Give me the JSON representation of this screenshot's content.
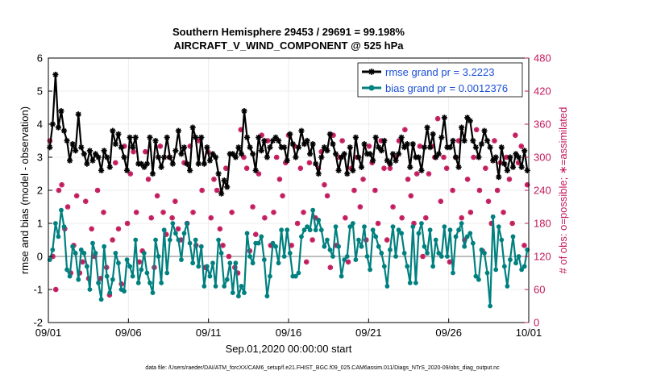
{
  "chart_data": {
    "type": "line",
    "title": "Southern Hemisphere 29453 / 29691 = 99.198%",
    "subtitle": "AIRCRAFT_V_WIND_COMPONENT @ 525 hPa",
    "xlabel": "Sep.01,2020 00:00:00 start",
    "ylabel": "rmse and bias (model - observation)",
    "ylabel_right": "# of obs: o=possible; ∗=assimilated",
    "footnote": "data file: /Users/raeder/DAI/ATM_forcXX/CAM6_setup/f.e21.FHIST_BGC.f09_025.CAM6assim.011/Diags_NTrS_2020-09/obs_diag_output.nc",
    "x_ticks": [
      "09/01",
      "09/06",
      "09/11",
      "09/16",
      "09/21",
      "09/26",
      "10/01"
    ],
    "y_ticks": [
      "-2",
      "-1",
      "0",
      "1",
      "2",
      "3",
      "4",
      "5",
      "6"
    ],
    "y_right_ticks": [
      "0",
      "60",
      "120",
      "180",
      "240",
      "300",
      "360",
      "420",
      "480"
    ],
    "xlim": [
      0,
      30
    ],
    "ylim": [
      -2,
      6
    ],
    "ylim_right": [
      0,
      480
    ],
    "colors": {
      "rmse": "#000000",
      "bias": "#00807f",
      "obs": "#c2185b",
      "zero_line": "#bdbdbd",
      "legend_text": "#1a4fd6"
    },
    "series": [
      {
        "name": "rmse grand pr = 3.2223",
        "marker": "star",
        "values": [
          3.3,
          4.0,
          5.5,
          3.9,
          4.4,
          3.8,
          3.5,
          2.9,
          3.4,
          3.2,
          4.3,
          3.3,
          3.1,
          2.8,
          3.2,
          2.9,
          3.1,
          3.0,
          2.6,
          3.2,
          3.0,
          2.7,
          3.8,
          3.4,
          3.7,
          3.3,
          3.0,
          2.6,
          3.6,
          3.3,
          3.6,
          2.8,
          2.8,
          2.7,
          2.8,
          3.6,
          2.5,
          3.5,
          3.0,
          2.7,
          3.0,
          3.6,
          3.0,
          2.8,
          3.2,
          3.8,
          3.1,
          3.3,
          2.8,
          2.6,
          3.9,
          3.6,
          2.8,
          3.6,
          2.8,
          3.3,
          2.9,
          3.1,
          3.0,
          2.5,
          1.9,
          2.3,
          2.1,
          3.1,
          3.1,
          3.0,
          3.3,
          3.1,
          4.4,
          3.6,
          3.3,
          3.1,
          2.6,
          3.6,
          3.2,
          3.5,
          3.0,
          3.3,
          3.5,
          3.6,
          3.5,
          3.3,
          3.3,
          2.9,
          3.7,
          3.4,
          3.0,
          3.3,
          3.8,
          3.4,
          3.5,
          3.1,
          3.4,
          2.8,
          2.5,
          3.0,
          3.3,
          3.2,
          3.7,
          3.4,
          3.1,
          2.6,
          3.0,
          3.1,
          2.5,
          3.3,
          2.6,
          3.6,
          3.0,
          2.7,
          3.4,
          3.1,
          3.1,
          2.9,
          3.6,
          3.3,
          3.2,
          3.5,
          2.9,
          2.8,
          3.1,
          2.9,
          3.1,
          3.6,
          3.3,
          3.4,
          2.7,
          3.4,
          3.0,
          3.0,
          2.6,
          3.3,
          3.9,
          3.3,
          3.7,
          3.0,
          3.1,
          3.6,
          4.2,
          3.3,
          3.3,
          3.5,
          3.0,
          2.7,
          3.9,
          3.5,
          4.2,
          4.1,
          3.5,
          3.3,
          3.0,
          3.4,
          3.8,
          3.5,
          3.3,
          2.9,
          3.0,
          2.4,
          3.3,
          2.8,
          2.6,
          3.0,
          2.7,
          3.1,
          3.0,
          2.7,
          3.2,
          2.6
        ]
      },
      {
        "name": "bias grand pr = 0.0012376",
        "marker": "circle",
        "values": [
          -0.1,
          0.2,
          1.0,
          0.6,
          1.4,
          0.9,
          -0.4,
          -0.6,
          0.3,
          0.1,
          -0.7,
          0.2,
          0.1,
          -0.3,
          -1.0,
          0.4,
          0.1,
          -0.8,
          -1.3,
          0.3,
          -0.6,
          -1.1,
          -0.7,
          0.1,
          -0.2,
          -1.0,
          -1.05,
          -0.1,
          -0.3,
          -0.6,
          0.5,
          -0.8,
          -0.4,
          0.1,
          -0.5,
          -0.8,
          -1.1,
          0.5,
          0.0,
          -0.8,
          0.8,
          -0.5,
          0.5,
          1.0,
          0.7,
          0.5,
          -0.1,
          0.7,
          1.0,
          0.4,
          -0.2,
          0.5,
          -0.3,
          0.3,
          -0.9,
          -0.3,
          -0.6,
          -0.2,
          -0.9,
          0.5,
          0.1,
          -0.9,
          -0.7,
          -0.2,
          -1.1,
          -0.2,
          -1.2,
          -0.9,
          -1.1,
          0.7,
          0.0,
          -0.2,
          0.4,
          0.4,
          0.6,
          -0.1,
          -1.2,
          -0.6,
          0.4,
          0.3,
          -0.2,
          0.8,
          0.0,
          0.8,
          0.1,
          -0.6,
          -0.6,
          -0.5,
          0.6,
          0.8,
          0.9,
          0.8,
          1.4,
          0.8,
          1.1,
          0.8,
          0.3,
          0.5,
          0.2,
          0.0,
          0.9,
          0.3,
          -0.6,
          -0.1,
          0.0,
          0.9,
          1.0,
          -0.1,
          0.5,
          0.3,
          0.9,
          0.0,
          -0.4,
          0.8,
          0.6,
          0.3,
          0.1,
          -0.3,
          -0.9,
          0.2,
          0.9,
          0.0,
          0.8,
          0.7,
          0.1,
          -0.3,
          -0.8,
          0.9,
          -0.8,
          0.7,
          1.0,
          0.3,
          0.1,
          0.8,
          -0.3,
          0.5,
          0.1,
          0.0,
          0.9,
          0.0,
          0.8,
          -0.5,
          0.6,
          0.8,
          1.0,
          0.3,
          0.6,
          0.7,
          0.4,
          -0.6,
          -0.7,
          0.2,
          0.1,
          -0.5,
          -1.5,
          1.2,
          -0.4,
          0.9,
          0.5,
          -0.3,
          -0.9,
          -0.1,
          0.6,
          -0.2,
          0.0,
          -0.4,
          -0.3,
          0.2
        ]
      },
      {
        "name": "# of obs",
        "axis": "right",
        "marker": "scatter",
        "values": [
          330,
          120,
          60,
          240,
          250,
          170,
          210,
          90,
          140,
          230,
          90,
          110,
          220,
          80,
          170,
          120,
          240,
          80,
          200,
          100,
          50,
          150,
          290,
          170,
          70,
          320,
          180,
          270,
          310,
          200,
          110,
          130,
          310,
          260,
          190,
          100,
          230,
          320,
          200,
          160,
          300,
          190,
          220,
          170,
          150,
          290,
          180,
          320,
          200,
          140,
          330,
          240,
          100,
          310,
          190,
          260,
          240,
          170,
          140,
          280,
          120,
          200,
          100,
          90,
          350,
          300,
          280,
          130,
          210,
          160,
          270,
          340,
          190,
          330,
          140,
          200,
          300,
          260,
          230,
          290,
          340,
          140,
          320,
          180,
          280,
          200,
          110,
          290,
          150,
          190,
          280,
          310,
          250,
          230,
          100,
          340,
          140,
          300,
          330,
          190,
          110,
          280,
          240,
          300,
          210,
          260,
          150,
          320,
          290,
          240,
          180,
          330,
          280,
          150,
          280,
          210,
          300,
          330,
          190,
          350,
          260,
          230,
          180,
          270,
          320,
          120,
          190,
          270,
          320,
          300,
          370,
          220,
          300,
          280,
          110,
          240,
          300,
          330,
          190,
          150,
          260,
          200,
          300,
          350,
          240,
          130,
          280,
          220,
          180,
          330,
          240,
          290,
          200,
          300,
          260,
          180,
          340,
          290,
          320,
          140,
          250
        ]
      }
    ]
  }
}
